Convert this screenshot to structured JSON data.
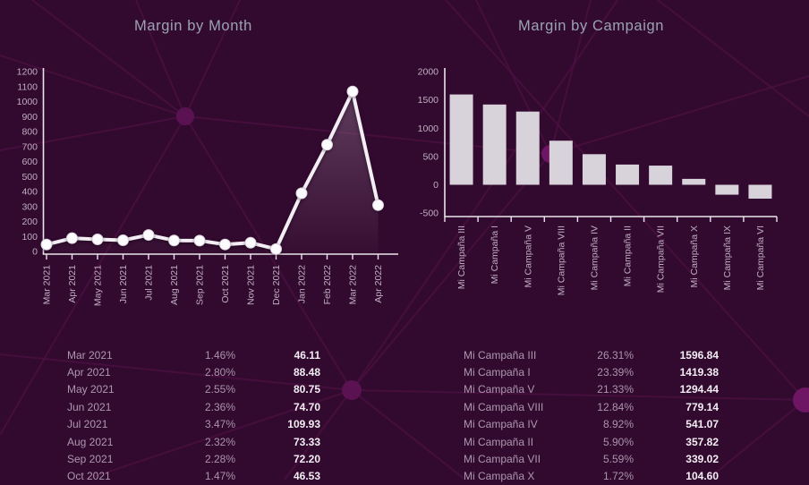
{
  "page": {
    "background_color": "#330a2f"
  },
  "titles": {
    "month_chart": "Margin by Month",
    "campaign_chart": "Margin by Campaign"
  },
  "chart_data": [
    {
      "type": "line",
      "title": "Margin by Month",
      "x": [
        "Mar 2021",
        "Apr 2021",
        "May 2021",
        "Jun 2021",
        "Jul 2021",
        "Aug 2021",
        "Sep 2021",
        "Oct 2021",
        "Nov 2021",
        "Dec 2021",
        "Jan 2022",
        "Feb 2022",
        "Mar 2022",
        "Apr 2022"
      ],
      "values": [
        46.11,
        88.48,
        80.75,
        74.7,
        109.93,
        73.33,
        72.2,
        46.53,
        58,
        16,
        388,
        712,
        1067,
        309
      ],
      "ylim": [
        0,
        1200
      ],
      "ytick_step": 100,
      "xlabel": "",
      "ylabel": "",
      "grid": false,
      "legend": false,
      "line_color": "#f2eef4",
      "marker_color": "#fcfbfd",
      "area_fill_top": "rgba(222,206,226,0.26)",
      "area_fill_bottom": "rgba(222,206,226,0.02)"
    },
    {
      "type": "bar",
      "title": "Margin by Campaign",
      "categories": [
        "Mi Campaña III",
        "Mi Campaña I",
        "Mi Campaña V",
        "Mi Campaña VIII",
        "Mi Campaña IV",
        "Mi Campaña II",
        "Mi Campaña VII",
        "Mi Campaña X",
        "Mi Campaña IX",
        "Mi Campaña VI"
      ],
      "values": [
        1596.84,
        1419.38,
        1294.44,
        779.14,
        541.07,
        357.82,
        339.02,
        104.6,
        -175,
        -245
      ],
      "ylim": [
        -500,
        2000
      ],
      "ytick_step": 500,
      "xlabel": "",
      "ylabel": "",
      "grid": false,
      "legend": false,
      "bar_color": "#d8d3db"
    }
  ],
  "tables": {
    "by_month": {
      "rows": [
        {
          "label": "Mar 2021",
          "pct": "1.46%",
          "value": "46.11"
        },
        {
          "label": "Apr 2021",
          "pct": "2.80%",
          "value": "88.48"
        },
        {
          "label": "May 2021",
          "pct": "2.55%",
          "value": "80.75"
        },
        {
          "label": "Jun 2021",
          "pct": "2.36%",
          "value": "74.70"
        },
        {
          "label": "Jul 2021",
          "pct": "3.47%",
          "value": "109.93"
        },
        {
          "label": "Aug 2021",
          "pct": "2.32%",
          "value": "73.33"
        },
        {
          "label": "Sep 2021",
          "pct": "2.28%",
          "value": "72.20"
        },
        {
          "label": "Oct 2021",
          "pct": "1.47%",
          "value": "46.53"
        }
      ]
    },
    "by_campaign": {
      "rows": [
        {
          "label": "Mi Campaña III",
          "pct": "26.31%",
          "value": "1596.84"
        },
        {
          "label": "Mi Campaña I",
          "pct": "23.39%",
          "value": "1419.38"
        },
        {
          "label": "Mi Campaña V",
          "pct": "21.33%",
          "value": "1294.44"
        },
        {
          "label": "Mi Campaña VIII",
          "pct": "12.84%",
          "value": "779.14"
        },
        {
          "label": "Mi Campaña IV",
          "pct": "8.92%",
          "value": "541.07"
        },
        {
          "label": "Mi Campaña II",
          "pct": "5.90%",
          "value": "357.82"
        },
        {
          "label": "Mi Campaña VII",
          "pct": "5.59%",
          "value": "339.02"
        },
        {
          "label": "Mi Campaña X",
          "pct": "1.72%",
          "value": "104.60"
        }
      ]
    }
  },
  "colors": {
    "title": "#9aa2b6",
    "axis": "#e9e4ea",
    "tick_label": "#bfaec3",
    "table_label": "#ab98b0",
    "table_value": "#f2eef3",
    "network_line": "#521047",
    "network_node": "#5b1252",
    "network_node_bright": "#6e1664"
  }
}
